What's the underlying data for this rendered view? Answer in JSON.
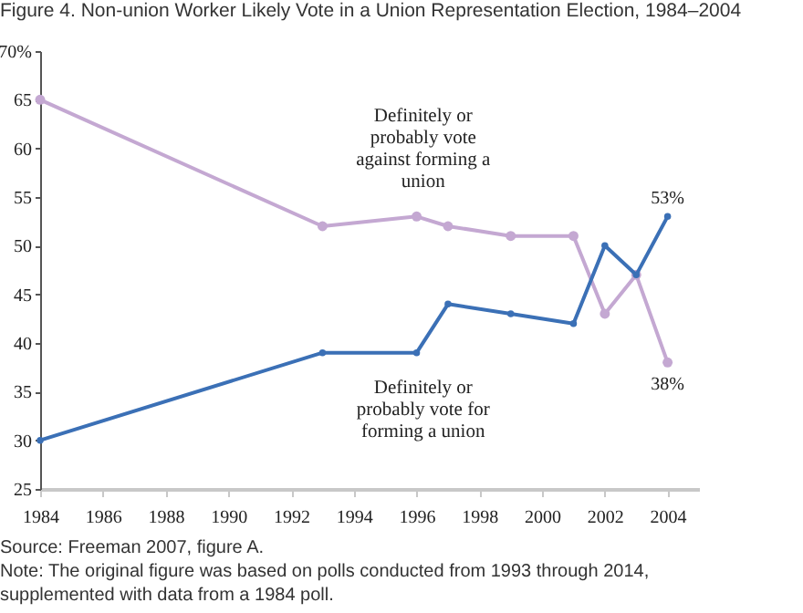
{
  "chart_data": {
    "type": "line",
    "title": "Figure 4. Non-union Worker Likely Vote in a Union Representation Election, 1984–2004",
    "x": [
      1984,
      1993,
      1996,
      1997,
      1999,
      2001,
      2002,
      2003,
      2004
    ],
    "series": [
      {
        "name": "Definitely or probably vote against forming a union",
        "color": "#c4a8d2",
        "values": [
          65,
          52,
          53,
          52,
          51,
          51,
          43,
          47,
          38
        ],
        "value_labels": [
          null,
          null,
          null,
          null,
          null,
          null,
          null,
          null,
          "38%"
        ]
      },
      {
        "name": "Definitely or probably vote for forming a union",
        "color": "#3b70b6",
        "values": [
          30,
          39,
          39,
          44,
          43,
          42,
          50,
          47,
          53
        ],
        "value_labels": [
          null,
          null,
          null,
          null,
          null,
          null,
          null,
          null,
          "53%"
        ]
      }
    ],
    "xlim": [
      1984,
      2005
    ],
    "xticks": [
      1984,
      1986,
      1988,
      1990,
      1992,
      1994,
      1996,
      1998,
      2000,
      2002,
      2004
    ],
    "ylim": [
      25,
      70
    ],
    "yticks": [
      25,
      30,
      35,
      40,
      45,
      50,
      55,
      60,
      65,
      {
        "value": 70,
        "label": "70%"
      }
    ],
    "grid": false,
    "marker": "circle",
    "line_style": "solid",
    "annotations": [
      "Source: Freeman 2007, figure A.",
      "Note: The original figure was based on polls conducted from 1993 through 2014, supplemented with data from a 1984 poll."
    ]
  }
}
